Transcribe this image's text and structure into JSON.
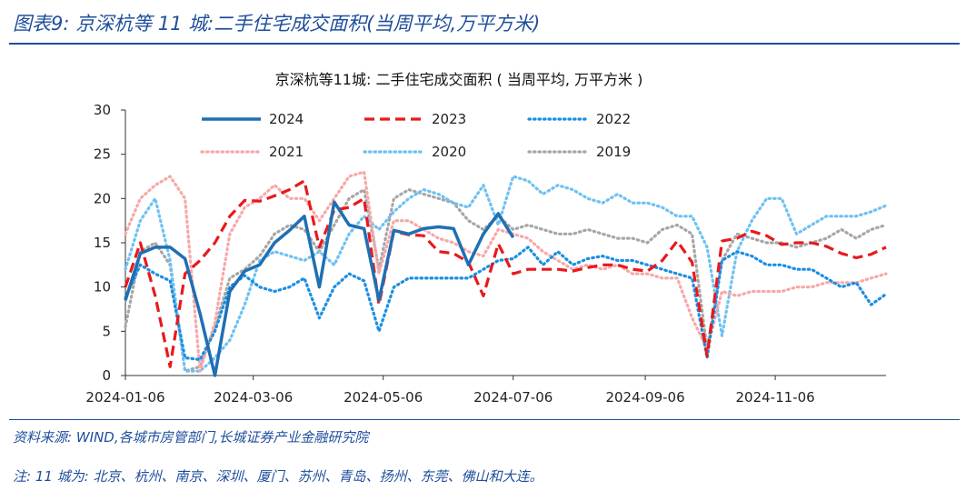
{
  "figure": {
    "title": "图表9:  京深杭等 11 城:二手住宅成交面积(当周平均,万平方米)",
    "source": "资料来源: WIND,各城市房管部门,长城证券产业金融研究院",
    "note": "注: 11 城为: 北京、杭州、南京、深圳、厦门、苏州、青岛、扬州、东莞、佛山和大连。"
  },
  "chart_data": {
    "type": "line",
    "title": "京深杭等11城: 二手住宅成交面积 ( 当周平均, 万平方米 )",
    "xlabel": "",
    "ylabel": "",
    "ylim": [
      0,
      30
    ],
    "yticks": [
      "0",
      "5",
      "10",
      "15",
      "20",
      "25",
      "30"
    ],
    "xlim": [
      "2024-01-06",
      "2024-12-28"
    ],
    "xticks": [
      "2024-01-06",
      "2024-03-06",
      "2024-05-06",
      "2024-07-06",
      "2024-09-06",
      "2024-11-06"
    ],
    "x": [
      "01-06",
      "01-13",
      "01-20",
      "01-27",
      "02-03",
      "02-10",
      "02-17",
      "02-24",
      "03-02",
      "03-09",
      "03-16",
      "03-23",
      "03-30",
      "04-06",
      "04-13",
      "04-20",
      "04-27",
      "05-04",
      "05-11",
      "05-18",
      "05-25",
      "06-01",
      "06-08",
      "06-15",
      "06-22",
      "06-29",
      "07-06",
      "07-13",
      "07-20",
      "07-27",
      "08-03",
      "08-10",
      "08-17",
      "08-24",
      "08-31",
      "09-07",
      "09-14",
      "09-21",
      "09-28",
      "10-05",
      "10-12",
      "10-19",
      "10-26",
      "11-02",
      "11-09",
      "11-16",
      "11-23",
      "11-30",
      "12-07",
      "12-14",
      "12-21",
      "12-28"
    ],
    "legend_position": "top",
    "grid": false,
    "series": [
      {
        "name": "2024",
        "color": "#1f6fb4",
        "style": "solid",
        "values": [
          8.5,
          13.8,
          14.5,
          14.5,
          13.2,
          7.0,
          0.0,
          9.5,
          11.8,
          12.5,
          15.0,
          16.4,
          18.0,
          10.0,
          19.6,
          17.0,
          16.6,
          8.5,
          16.4,
          16.0,
          16.6,
          16.8,
          16.6,
          12.5,
          16.0,
          18.3,
          15.6,
          null,
          null,
          null,
          null,
          null,
          null,
          null,
          null,
          null,
          null,
          null,
          null,
          null,
          null,
          null,
          null,
          null,
          null,
          null,
          null,
          null,
          null,
          null,
          null,
          null
        ]
      },
      {
        "name": "2023",
        "color": "#e8191c",
        "style": "dash",
        "values": [
          10.0,
          15.0,
          9.0,
          1.0,
          11.5,
          13.0,
          15.0,
          18.0,
          19.8,
          19.7,
          20.3,
          21.0,
          22.0,
          14.5,
          18.7,
          19.0,
          20.0,
          8.0,
          16.3,
          15.9,
          15.8,
          14.0,
          13.8,
          12.8,
          9.0,
          14.9,
          11.5,
          12.0,
          12.0,
          12.0,
          11.8,
          12.2,
          12.5,
          12.5,
          12.0,
          11.8,
          13.0,
          15.2,
          12.8,
          2.2,
          15.2,
          15.5,
          16.3,
          15.8,
          14.8,
          15.0,
          15.0,
          14.6,
          13.8,
          13.3,
          13.7,
          14.5
        ]
      },
      {
        "name": "2022",
        "color": "#1a8fe3",
        "style": "dot",
        "values": [
          8.8,
          12.5,
          11.5,
          10.7,
          2.0,
          1.8,
          5.0,
          10.0,
          11.3,
          10.0,
          9.5,
          10.0,
          11.0,
          6.5,
          10.0,
          11.5,
          10.7,
          5.0,
          10.0,
          11.0,
          11.0,
          11.0,
          11.0,
          11.0,
          12.0,
          13.0,
          13.2,
          14.5,
          12.5,
          14.0,
          12.5,
          13.2,
          13.5,
          13.0,
          13.0,
          12.5,
          12.0,
          11.5,
          11.0,
          2.0,
          13.0,
          14.0,
          13.5,
          12.5,
          12.5,
          12.0,
          12.0,
          11.0,
          10.0,
          10.5,
          8.0,
          9.2
        ]
      },
      {
        "name": "2021",
        "color": "#f7a8a8",
        "style": "dot",
        "values": [
          16.0,
          20.0,
          21.5,
          22.5,
          20.0,
          0.5,
          6.0,
          16.0,
          19.0,
          20.0,
          21.5,
          20.0,
          20.0,
          17.5,
          20.0,
          22.5,
          23.0,
          11.5,
          17.5,
          17.5,
          16.5,
          15.5,
          15.0,
          14.0,
          13.5,
          16.5,
          16.0,
          15.5,
          14.0,
          13.0,
          12.0,
          12.5,
          12.0,
          12.5,
          11.5,
          11.5,
          11.0,
          11.0,
          6.5,
          3.0,
          9.5,
          9.0,
          9.5,
          9.5,
          9.5,
          10.0,
          10.0,
          10.5,
          10.5,
          10.5,
          11.0,
          11.5
        ]
      },
      {
        "name": "2020",
        "color": "#6ec1f2",
        "style": "dot",
        "values": [
          12.0,
          17.5,
          20.0,
          13.0,
          0.5,
          0.5,
          2.0,
          4.0,
          8.0,
          13.0,
          14.0,
          13.5,
          13.0,
          14.0,
          12.5,
          16.0,
          18.0,
          16.5,
          18.5,
          20.0,
          21.0,
          20.5,
          19.5,
          19.0,
          21.5,
          17.0,
          22.5,
          22.0,
          20.5,
          21.5,
          21.0,
          20.0,
          19.5,
          20.5,
          19.5,
          19.5,
          19.0,
          18.0,
          18.0,
          14.5,
          4.5,
          14.0,
          17.5,
          20.0,
          20.0,
          16.0,
          17.0,
          18.0,
          18.0,
          18.0,
          18.5,
          19.2
        ]
      },
      {
        "name": "2019",
        "color": "#a6a6a6",
        "style": "dot",
        "values": [
          5.5,
          14.0,
          15.0,
          12.5,
          0.5,
          1.0,
          5.5,
          11.0,
          12.0,
          13.5,
          16.0,
          17.0,
          16.5,
          14.0,
          17.0,
          20.0,
          21.0,
          12.0,
          20.0,
          21.0,
          20.5,
          20.0,
          19.5,
          17.5,
          16.5,
          18.0,
          16.5,
          17.0,
          16.5,
          16.0,
          16.0,
          16.5,
          16.0,
          15.5,
          15.5,
          15.0,
          16.5,
          17.0,
          16.0,
          3.0,
          13.0,
          16.0,
          15.5,
          15.0,
          15.0,
          14.5,
          15.0,
          15.5,
          16.5,
          15.5,
          16.5,
          17.0
        ]
      }
    ]
  }
}
